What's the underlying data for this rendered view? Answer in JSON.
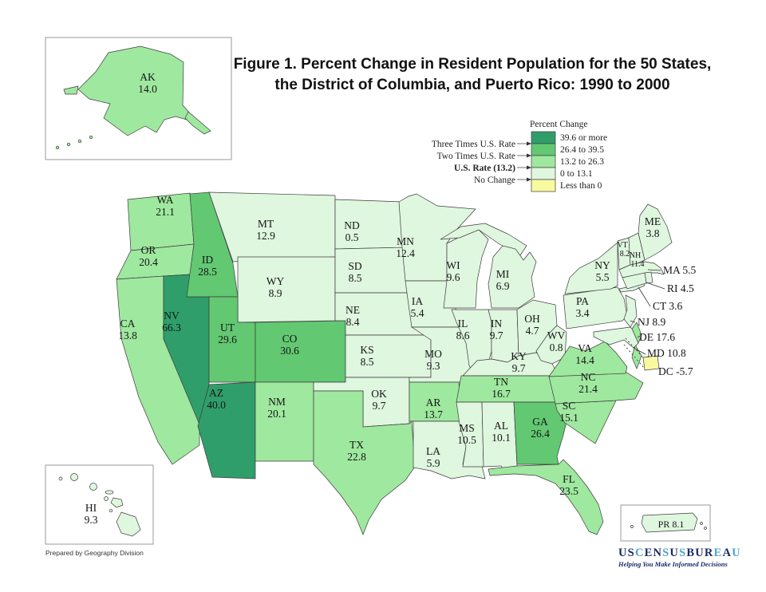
{
  "title": {
    "line1": "Figure 1.  Percent Change in Resident Population for the 50 States,",
    "line2": "the District of Columbia, and Puerto Rico: 1990 to 2000"
  },
  "legend": {
    "title": "Percent Change",
    "classes": [
      {
        "label": "39.6 or more",
        "color": "#2F9E6B",
        "min": 39.6
      },
      {
        "label": "26.4 to 39.5",
        "color": "#62C872",
        "min": 26.4
      },
      {
        "label": "13.2 to 26.3",
        "color": "#9FE89F",
        "min": 13.2
      },
      {
        "label": "0 to 13.1",
        "color": "#DFF6DF",
        "min": 0
      },
      {
        "label": "Less than 0",
        "color": "#F9F9A0",
        "min": -1000
      }
    ],
    "markers": [
      "Three Times U.S. Rate",
      "Two Times U.S. Rate",
      "U.S. Rate (13.2)",
      "No Change"
    ]
  },
  "states": [
    {
      "abbr": "AK",
      "value": "14.0"
    },
    {
      "abbr": "WA",
      "value": "21.1"
    },
    {
      "abbr": "OR",
      "value": "20.4"
    },
    {
      "abbr": "CA",
      "value": "13.8"
    },
    {
      "abbr": "NV",
      "value": "66.3"
    },
    {
      "abbr": "ID",
      "value": "28.5"
    },
    {
      "abbr": "MT",
      "value": "12.9"
    },
    {
      "abbr": "WY",
      "value": "8.9"
    },
    {
      "abbr": "UT",
      "value": "29.6"
    },
    {
      "abbr": "CO",
      "value": "30.6"
    },
    {
      "abbr": "AZ",
      "value": "40.0"
    },
    {
      "abbr": "NM",
      "value": "20.1"
    },
    {
      "abbr": "ND",
      "value": "0.5"
    },
    {
      "abbr": "SD",
      "value": "8.5"
    },
    {
      "abbr": "NE",
      "value": "8.4"
    },
    {
      "abbr": "KS",
      "value": "8.5"
    },
    {
      "abbr": "OK",
      "value": "9.7"
    },
    {
      "abbr": "TX",
      "value": "22.8"
    },
    {
      "abbr": "MN",
      "value": "12.4"
    },
    {
      "abbr": "IA",
      "value": "5.4"
    },
    {
      "abbr": "MO",
      "value": "9.3"
    },
    {
      "abbr": "AR",
      "value": "13.7"
    },
    {
      "abbr": "LA",
      "value": "5.9"
    },
    {
      "abbr": "WI",
      "value": "9.6"
    },
    {
      "abbr": "IL",
      "value": "8.6"
    },
    {
      "abbr": "MS",
      "value": "10.5"
    },
    {
      "abbr": "MI",
      "value": "6.9"
    },
    {
      "abbr": "IN",
      "value": "9.7"
    },
    {
      "abbr": "OH",
      "value": "4.7"
    },
    {
      "abbr": "KY",
      "value": "9.7"
    },
    {
      "abbr": "TN",
      "value": "16.7"
    },
    {
      "abbr": "AL",
      "value": "10.1"
    },
    {
      "abbr": "GA",
      "value": "26.4"
    },
    {
      "abbr": "FL",
      "value": "23.5"
    },
    {
      "abbr": "SC",
      "value": "15.1"
    },
    {
      "abbr": "NC",
      "value": "21.4"
    },
    {
      "abbr": "VA",
      "value": "14.4"
    },
    {
      "abbr": "WV",
      "value": "0.8"
    },
    {
      "abbr": "PA",
      "value": "3.4"
    },
    {
      "abbr": "NY",
      "value": "5.5"
    },
    {
      "abbr": "ME",
      "value": "3.8"
    },
    {
      "abbr": "VT",
      "value": "8.2"
    },
    {
      "abbr": "NH",
      "value": "11.4"
    },
    {
      "abbr": "MA",
      "value": "5.5"
    },
    {
      "abbr": "RI",
      "value": "4.5"
    },
    {
      "abbr": "CT",
      "value": "3.6"
    },
    {
      "abbr": "NJ",
      "value": "8.9"
    },
    {
      "abbr": "DE",
      "value": "17.6"
    },
    {
      "abbr": "MD",
      "value": "10.8"
    },
    {
      "abbr": "DC",
      "value": "-5.7"
    },
    {
      "abbr": "HI",
      "value": "9.3"
    },
    {
      "abbr": "PR",
      "value": "8.1"
    }
  ],
  "footer": {
    "credit": "Prepared by Geography Division"
  },
  "logo": {
    "letters": [
      {
        "ch": "U",
        "tone": "dark"
      },
      {
        "ch": "S",
        "tone": "dark"
      },
      {
        "ch": "C",
        "tone": "light"
      },
      {
        "ch": "E",
        "tone": "dark"
      },
      {
        "ch": "N",
        "tone": "dark"
      },
      {
        "ch": "S",
        "tone": "light"
      },
      {
        "ch": "U",
        "tone": "dark"
      },
      {
        "ch": "S",
        "tone": "light"
      },
      {
        "ch": "B",
        "tone": "dark"
      },
      {
        "ch": "U",
        "tone": "dark"
      },
      {
        "ch": "R",
        "tone": "dark"
      },
      {
        "ch": "E",
        "tone": "light"
      },
      {
        "ch": "A",
        "tone": "dark"
      },
      {
        "ch": "U",
        "tone": "light"
      }
    ],
    "colors": {
      "dark": "#1B2A66",
      "light": "#4DA4CD"
    },
    "tagline": "Helping You Make Informed Decisions"
  }
}
